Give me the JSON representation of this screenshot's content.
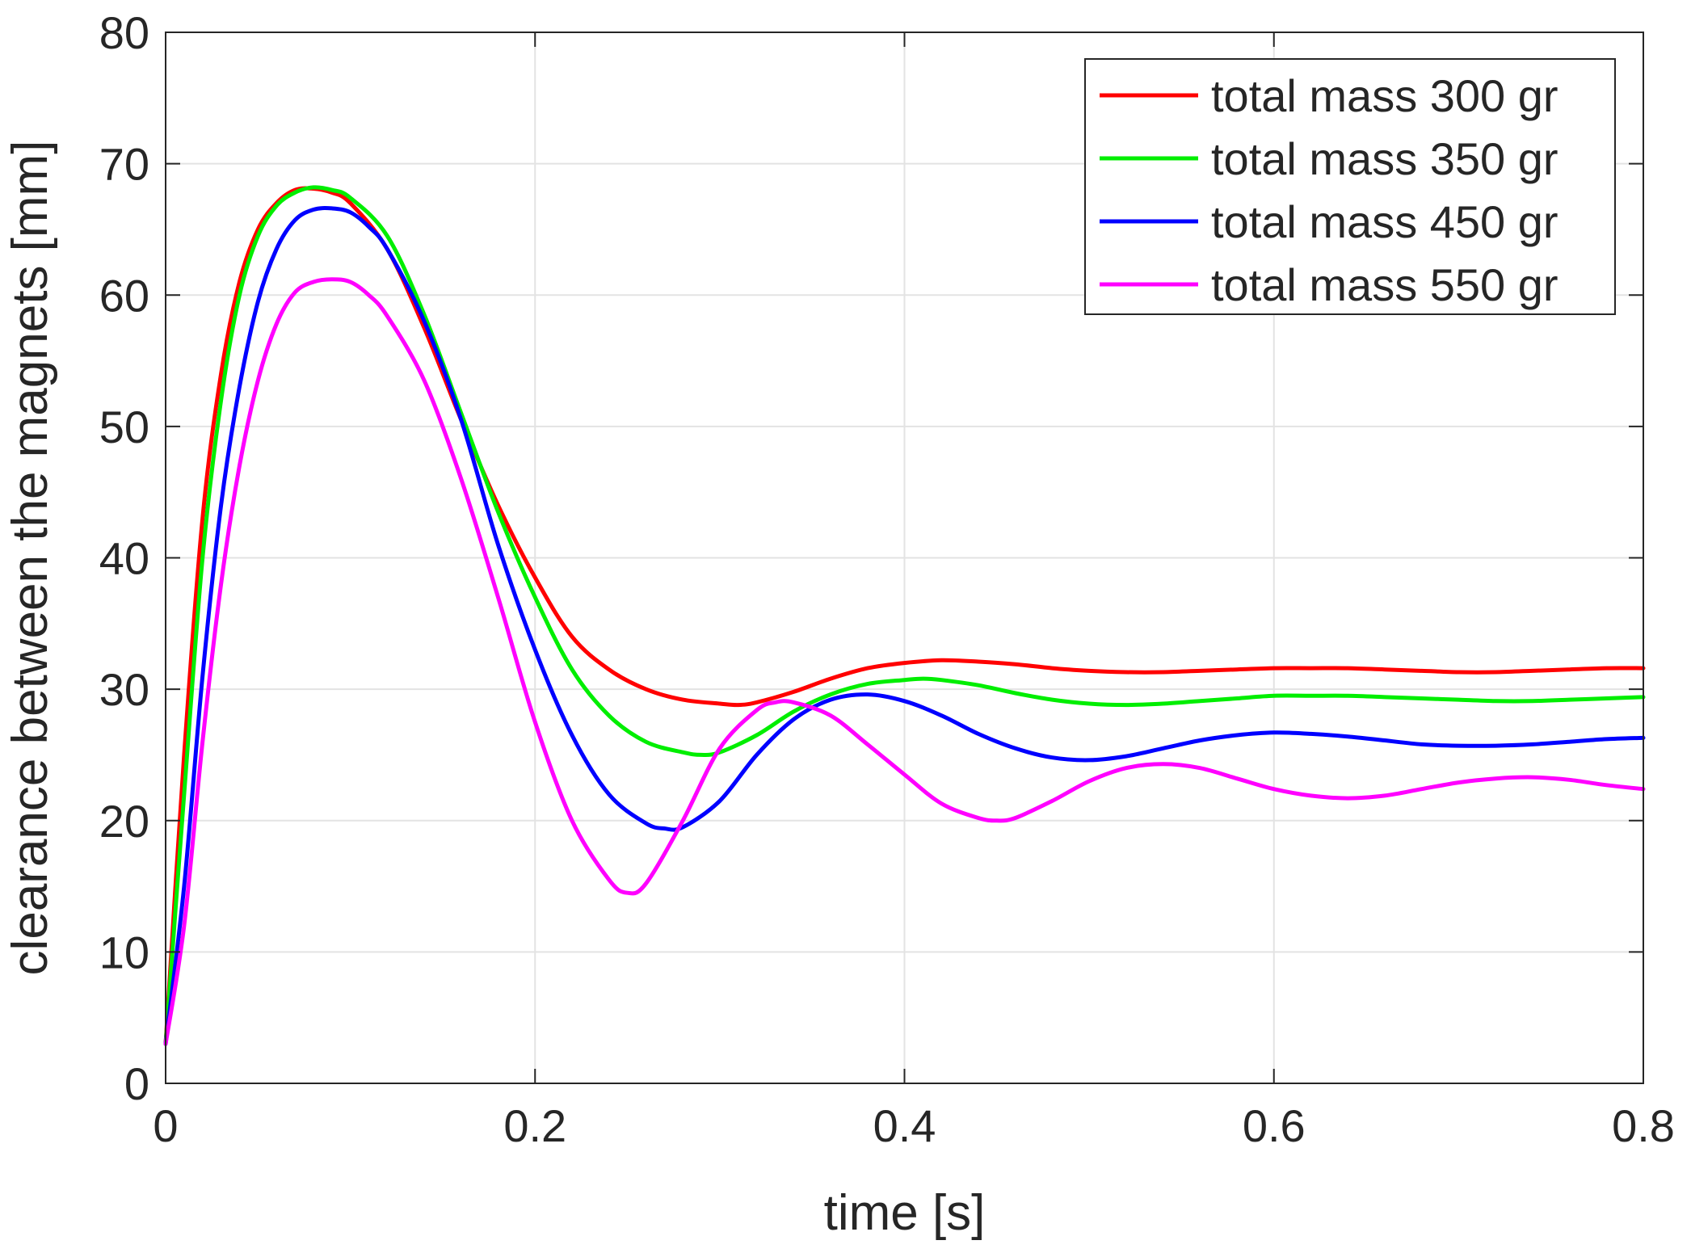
{
  "chart_data": {
    "type": "line",
    "title": "",
    "xlabel": "time [s]",
    "ylabel": "clearance between the magnets [mm]",
    "xlim": [
      0,
      0.8
    ],
    "ylim": [
      0,
      80
    ],
    "xticks": [
      0,
      0.2,
      0.4,
      0.6,
      0.8
    ],
    "xtick_labels": [
      "0",
      "0.2",
      "0.4",
      "0.6",
      "0.8"
    ],
    "yticks": [
      0,
      10,
      20,
      30,
      40,
      50,
      60,
      70,
      80
    ],
    "ytick_labels": [
      "0",
      "10",
      "20",
      "30",
      "40",
      "50",
      "60",
      "70",
      "80"
    ],
    "grid": true,
    "legend_position": "top-right",
    "series": [
      {
        "name": "total mass 300 gr",
        "color": "#ff0000",
        "x": [
          0,
          0.01,
          0.02,
          0.03,
          0.04,
          0.05,
          0.06,
          0.07,
          0.08,
          0.09,
          0.1,
          0.12,
          0.14,
          0.16,
          0.18,
          0.2,
          0.22,
          0.24,
          0.26,
          0.28,
          0.3,
          0.31,
          0.32,
          0.34,
          0.36,
          0.38,
          0.4,
          0.42,
          0.44,
          0.46,
          0.48,
          0.5,
          0.52,
          0.54,
          0.56,
          0.58,
          0.6,
          0.62,
          0.64,
          0.66,
          0.68,
          0.7,
          0.72,
          0.74,
          0.76,
          0.78,
          0.8
        ],
        "values": [
          3,
          25,
          43,
          54,
          61,
          65,
          67,
          68,
          68.1,
          67.8,
          67,
          63.5,
          57.5,
          50.5,
          44,
          38.5,
          34,
          31.5,
          30,
          29.2,
          28.9,
          28.8,
          29,
          29.8,
          30.8,
          31.6,
          32,
          32.2,
          32.1,
          31.9,
          31.6,
          31.4,
          31.3,
          31.3,
          31.4,
          31.5,
          31.6,
          31.6,
          31.6,
          31.5,
          31.4,
          31.3,
          31.3,
          31.4,
          31.5,
          31.6,
          31.6
        ]
      },
      {
        "name": "total mass 350 gr",
        "color": "#00ee00",
        "x": [
          0,
          0.01,
          0.02,
          0.03,
          0.04,
          0.05,
          0.06,
          0.07,
          0.08,
          0.09,
          0.1,
          0.12,
          0.14,
          0.16,
          0.18,
          0.2,
          0.22,
          0.24,
          0.26,
          0.28,
          0.29,
          0.3,
          0.32,
          0.34,
          0.36,
          0.38,
          0.4,
          0.41,
          0.42,
          0.44,
          0.46,
          0.48,
          0.5,
          0.52,
          0.54,
          0.56,
          0.58,
          0.6,
          0.62,
          0.64,
          0.66,
          0.68,
          0.7,
          0.72,
          0.74,
          0.76,
          0.78,
          0.8
        ],
        "values": [
          3,
          22,
          40,
          52,
          60,
          64.5,
          66.8,
          67.8,
          68.2,
          68,
          67.4,
          64.5,
          58.5,
          51,
          43.5,
          37,
          31.5,
          28,
          26,
          25.2,
          25,
          25.2,
          26.5,
          28.3,
          29.6,
          30.4,
          30.7,
          30.8,
          30.7,
          30.3,
          29.7,
          29.2,
          28.9,
          28.8,
          28.9,
          29.1,
          29.3,
          29.5,
          29.5,
          29.5,
          29.4,
          29.3,
          29.2,
          29.1,
          29.1,
          29.2,
          29.3,
          29.4
        ]
      },
      {
        "name": "total mass 450 gr",
        "color": "#0000ff",
        "x": [
          0,
          0.01,
          0.02,
          0.03,
          0.04,
          0.05,
          0.06,
          0.07,
          0.08,
          0.09,
          0.1,
          0.11,
          0.12,
          0.14,
          0.16,
          0.18,
          0.2,
          0.22,
          0.24,
          0.26,
          0.27,
          0.28,
          0.3,
          0.32,
          0.34,
          0.36,
          0.38,
          0.4,
          0.42,
          0.44,
          0.46,
          0.48,
          0.5,
          0.52,
          0.54,
          0.56,
          0.58,
          0.6,
          0.62,
          0.64,
          0.66,
          0.68,
          0.7,
          0.72,
          0.74,
          0.76,
          0.78,
          0.8
        ],
        "values": [
          3,
          15,
          31,
          44,
          53,
          59.5,
          63.5,
          65.7,
          66.5,
          66.6,
          66.3,
          65.2,
          63.5,
          58,
          50.5,
          41,
          33,
          26.5,
          22,
          19.8,
          19.4,
          19.5,
          21.5,
          25,
          27.7,
          29.2,
          29.6,
          29.1,
          28,
          26.6,
          25.5,
          24.8,
          24.6,
          24.9,
          25.5,
          26.1,
          26.5,
          26.7,
          26.6,
          26.4,
          26.1,
          25.8,
          25.7,
          25.7,
          25.8,
          26,
          26.2,
          26.3
        ]
      },
      {
        "name": "total mass 550 gr",
        "color": "#ff00ff",
        "x": [
          0,
          0.01,
          0.02,
          0.03,
          0.04,
          0.05,
          0.06,
          0.07,
          0.08,
          0.09,
          0.1,
          0.11,
          0.12,
          0.14,
          0.16,
          0.18,
          0.2,
          0.22,
          0.24,
          0.25,
          0.26,
          0.28,
          0.3,
          0.32,
          0.33,
          0.34,
          0.36,
          0.38,
          0.4,
          0.42,
          0.44,
          0.45,
          0.46,
          0.48,
          0.5,
          0.52,
          0.54,
          0.56,
          0.58,
          0.6,
          0.62,
          0.64,
          0.66,
          0.68,
          0.7,
          0.72,
          0.74,
          0.76,
          0.78,
          0.8
        ],
        "values": [
          3,
          12,
          26,
          38,
          47,
          53.5,
          57.8,
          60.2,
          61,
          61.2,
          61,
          60,
          58.4,
          53.5,
          46,
          37,
          27.5,
          20,
          15.5,
          14.5,
          15.2,
          20,
          25.5,
          28.4,
          29,
          29,
          28,
          25.8,
          23.5,
          21.3,
          20.2,
          20,
          20.2,
          21.5,
          23,
          24,
          24.3,
          24,
          23.2,
          22.4,
          21.9,
          21.7,
          21.9,
          22.4,
          22.9,
          23.2,
          23.3,
          23.1,
          22.7,
          22.4
        ]
      }
    ]
  }
}
